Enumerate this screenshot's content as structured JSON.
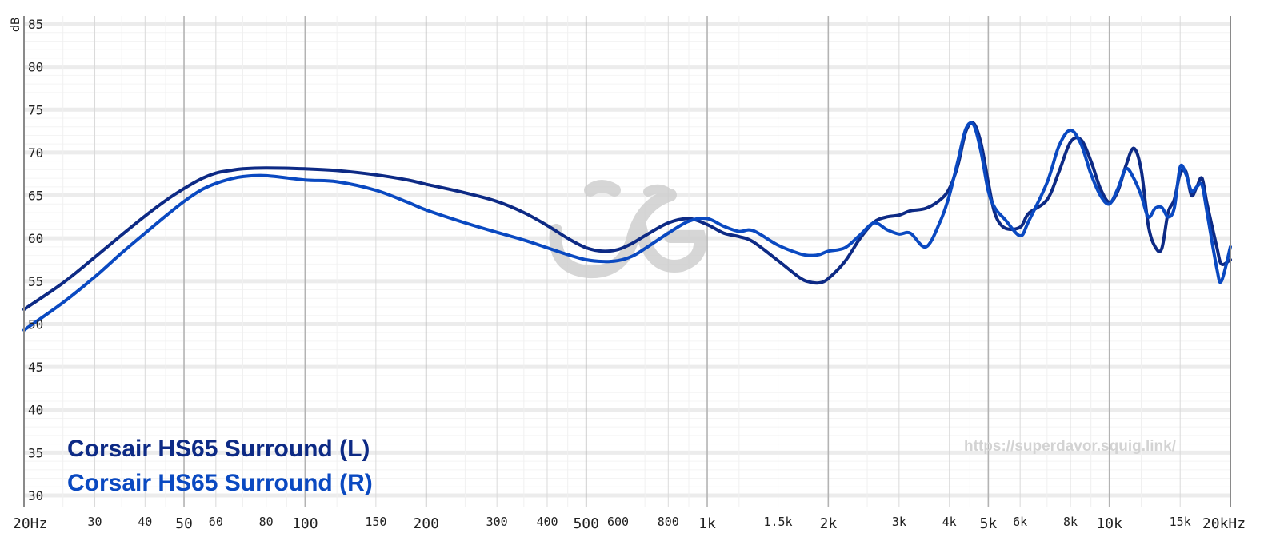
{
  "chart_data": {
    "type": "line",
    "ylabel": "dB",
    "xscale": "log",
    "xlim": [
      20,
      20000
    ],
    "ylim": [
      30,
      85
    ],
    "grid": true,
    "legend_position": "bottom-left",
    "y_ticks": [
      "30",
      "35",
      "40",
      "45",
      "50",
      "55",
      "60",
      "65",
      "70",
      "75",
      "80",
      "85"
    ],
    "x_ticks": [
      {
        "f": 20,
        "label": "20Hz",
        "size": "big"
      },
      {
        "f": 30,
        "label": "30",
        "size": "small"
      },
      {
        "f": 40,
        "label": "40",
        "size": "small"
      },
      {
        "f": 50,
        "label": "50",
        "size": "big"
      },
      {
        "f": 60,
        "label": "60",
        "size": "small"
      },
      {
        "f": 80,
        "label": "80",
        "size": "small"
      },
      {
        "f": 100,
        "label": "100",
        "size": "big"
      },
      {
        "f": 150,
        "label": "150",
        "size": "small"
      },
      {
        "f": 200,
        "label": "200",
        "size": "big"
      },
      {
        "f": 300,
        "label": "300",
        "size": "small"
      },
      {
        "f": 400,
        "label": "400",
        "size": "small"
      },
      {
        "f": 500,
        "label": "500",
        "size": "big"
      },
      {
        "f": 600,
        "label": "600",
        "size": "small"
      },
      {
        "f": 800,
        "label": "800",
        "size": "small"
      },
      {
        "f": 1000,
        "label": "1k",
        "size": "big"
      },
      {
        "f": 1500,
        "label": "1.5k",
        "size": "small"
      },
      {
        "f": 2000,
        "label": "2k",
        "size": "big"
      },
      {
        "f": 3000,
        "label": "3k",
        "size": "small"
      },
      {
        "f": 4000,
        "label": "4k",
        "size": "small"
      },
      {
        "f": 5000,
        "label": "5k",
        "size": "big"
      },
      {
        "f": 6000,
        "label": "6k",
        "size": "small"
      },
      {
        "f": 8000,
        "label": "8k",
        "size": "small"
      },
      {
        "f": 10000,
        "label": "10k",
        "size": "big"
      },
      {
        "f": 15000,
        "label": "15k",
        "size": "small"
      },
      {
        "f": 20000,
        "label": "20kHz",
        "size": "big"
      }
    ],
    "watermark_url": "https://superdavor.squig.link/",
    "series": [
      {
        "name": "Corsair HS65 Surround (L)",
        "color": "#0d2a85",
        "points": [
          [
            20,
            51.7
          ],
          [
            25,
            54.8
          ],
          [
            30,
            57.8
          ],
          [
            35,
            60.4
          ],
          [
            40,
            62.6
          ],
          [
            45,
            64.4
          ],
          [
            50,
            65.8
          ],
          [
            55,
            66.9
          ],
          [
            60,
            67.6
          ],
          [
            65,
            67.9
          ],
          [
            70,
            68.1
          ],
          [
            80,
            68.2
          ],
          [
            100,
            68.1
          ],
          [
            120,
            67.9
          ],
          [
            150,
            67.4
          ],
          [
            180,
            66.8
          ],
          [
            200,
            66.3
          ],
          [
            250,
            65.3
          ],
          [
            300,
            64.3
          ],
          [
            350,
            63.0
          ],
          [
            400,
            61.5
          ],
          [
            450,
            60.0
          ],
          [
            500,
            58.9
          ],
          [
            550,
            58.5
          ],
          [
            600,
            58.7
          ],
          [
            650,
            59.4
          ],
          [
            700,
            60.3
          ],
          [
            800,
            61.8
          ],
          [
            900,
            62.3
          ],
          [
            1000,
            61.6
          ],
          [
            1100,
            60.6
          ],
          [
            1200,
            60.2
          ],
          [
            1300,
            59.6
          ],
          [
            1500,
            57.4
          ],
          [
            1700,
            55.4
          ],
          [
            1800,
            54.9
          ],
          [
            1900,
            54.8
          ],
          [
            2000,
            55.3
          ],
          [
            2200,
            57.3
          ],
          [
            2400,
            60.0
          ],
          [
            2600,
            61.9
          ],
          [
            2800,
            62.5
          ],
          [
            3000,
            62.7
          ],
          [
            3200,
            63.2
          ],
          [
            3500,
            63.5
          ],
          [
            3800,
            64.5
          ],
          [
            4000,
            65.8
          ],
          [
            4200,
            68.5
          ],
          [
            4400,
            72.5
          ],
          [
            4600,
            73.4
          ],
          [
            4800,
            71.0
          ],
          [
            5000,
            66.5
          ],
          [
            5200,
            62.8
          ],
          [
            5500,
            61.2
          ],
          [
            6000,
            61.3
          ],
          [
            6300,
            62.9
          ],
          [
            7000,
            64.5
          ],
          [
            7500,
            67.8
          ],
          [
            8000,
            71.2
          ],
          [
            8500,
            71.5
          ],
          [
            9000,
            69.0
          ],
          [
            9500,
            65.8
          ],
          [
            10000,
            64.2
          ],
          [
            10500,
            65.5
          ],
          [
            11000,
            68.5
          ],
          [
            11500,
            70.5
          ],
          [
            12000,
            68.0
          ],
          [
            12500,
            61.5
          ],
          [
            13000,
            59.0
          ],
          [
            13500,
            58.8
          ],
          [
            14000,
            63.0
          ],
          [
            14500,
            64.5
          ],
          [
            15000,
            67.5
          ],
          [
            15500,
            67.8
          ],
          [
            16000,
            65.0
          ],
          [
            16500,
            66.0
          ],
          [
            17000,
            67.0
          ],
          [
            17500,
            64.0
          ],
          [
            18500,
            59.0
          ],
          [
            19000,
            57.0
          ],
          [
            20000,
            57.5
          ]
        ]
      },
      {
        "name": "Corsair HS65 Surround (R)",
        "color": "#0a49c1",
        "points": [
          [
            20,
            49.3
          ],
          [
            25,
            52.5
          ],
          [
            30,
            55.5
          ],
          [
            35,
            58.3
          ],
          [
            40,
            60.6
          ],
          [
            45,
            62.6
          ],
          [
            50,
            64.3
          ],
          [
            55,
            65.6
          ],
          [
            60,
            66.4
          ],
          [
            65,
            66.9
          ],
          [
            70,
            67.2
          ],
          [
            80,
            67.3
          ],
          [
            100,
            66.8
          ],
          [
            120,
            66.6
          ],
          [
            150,
            65.6
          ],
          [
            180,
            64.2
          ],
          [
            200,
            63.3
          ],
          [
            250,
            61.8
          ],
          [
            300,
            60.7
          ],
          [
            350,
            59.8
          ],
          [
            400,
            58.9
          ],
          [
            450,
            58.1
          ],
          [
            500,
            57.5
          ],
          [
            550,
            57.3
          ],
          [
            600,
            57.4
          ],
          [
            650,
            57.9
          ],
          [
            700,
            58.8
          ],
          [
            800,
            60.6
          ],
          [
            900,
            62.0
          ],
          [
            1000,
            62.3
          ],
          [
            1100,
            61.4
          ],
          [
            1200,
            60.8
          ],
          [
            1300,
            60.9
          ],
          [
            1500,
            59.2
          ],
          [
            1700,
            58.2
          ],
          [
            1800,
            58.0
          ],
          [
            1900,
            58.1
          ],
          [
            2000,
            58.5
          ],
          [
            2200,
            58.9
          ],
          [
            2400,
            60.4
          ],
          [
            2600,
            61.8
          ],
          [
            2800,
            61.0
          ],
          [
            3000,
            60.5
          ],
          [
            3200,
            60.6
          ],
          [
            3500,
            59.0
          ],
          [
            3800,
            62.0
          ],
          [
            4000,
            65.0
          ],
          [
            4200,
            69.0
          ],
          [
            4400,
            72.8
          ],
          [
            4600,
            73.2
          ],
          [
            4800,
            70.0
          ],
          [
            5000,
            65.5
          ],
          [
            5200,
            63.5
          ],
          [
            5500,
            62.2
          ],
          [
            6000,
            60.3
          ],
          [
            6300,
            62.0
          ],
          [
            7000,
            66.5
          ],
          [
            7500,
            70.8
          ],
          [
            8000,
            72.6
          ],
          [
            8500,
            71.0
          ],
          [
            9000,
            67.5
          ],
          [
            9500,
            65.0
          ],
          [
            10000,
            64.0
          ],
          [
            10500,
            65.8
          ],
          [
            11000,
            68.1
          ],
          [
            11500,
            67.0
          ],
          [
            12000,
            65.0
          ],
          [
            12500,
            62.5
          ],
          [
            13000,
            63.5
          ],
          [
            13500,
            63.6
          ],
          [
            14000,
            62.5
          ],
          [
            14500,
            63.5
          ],
          [
            15000,
            68.3
          ],
          [
            15500,
            67.5
          ],
          [
            16000,
            65.5
          ],
          [
            16500,
            66.0
          ],
          [
            17000,
            66.2
          ],
          [
            17500,
            63.0
          ],
          [
            18500,
            56.5
          ],
          [
            19000,
            55.0
          ],
          [
            20000,
            59.0
          ]
        ]
      }
    ]
  }
}
